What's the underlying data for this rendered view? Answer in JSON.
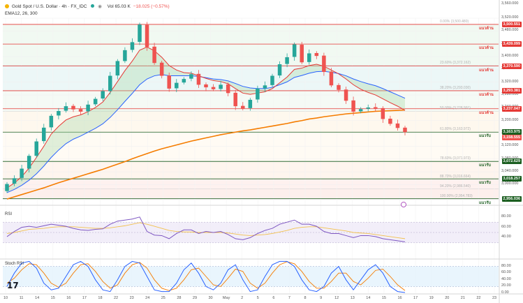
{
  "header": {
    "symbol": "Gold Spot / U.S. Dollar",
    "interval": "4h",
    "source": "FX_IDC",
    "volume": "Vol 65.03 K",
    "change": "−18.025 (−0.57%)",
    "ema_label": "EMA12, 26, 300"
  },
  "colors": {
    "up": "#26a69a",
    "down": "#ef5350",
    "resistance": "#e53935",
    "support": "#1b5e20",
    "ema_fast": "#e53935",
    "ema_mid": "#2962ff",
    "ema_slow": "#f57c00",
    "rsi": "#7e57c2",
    "stoch_k": "#2962ff",
    "stoch_d": "#f57c00"
  },
  "chart_data": {
    "type": "candlestick",
    "title": "Gold Spot / U.S. Dollar · 4h · FX_IDC",
    "y_axis": {
      "min": 2940,
      "max": 3580,
      "ticks": [
        3000,
        3040,
        3080,
        3120,
        3160,
        3200,
        3240,
        3280,
        3320,
        3360,
        3400,
        3440,
        3480,
        3520,
        3560,
        3580
      ]
    },
    "x_axis": {
      "ticks": [
        "10",
        "11",
        "14",
        "15",
        "16",
        "17",
        "18",
        "22",
        "23",
        "24",
        "25",
        "28",
        "29",
        "30",
        "May",
        "2",
        "5",
        "6",
        "7",
        "8",
        "9",
        "12",
        "13",
        "14",
        "15",
        "16",
        "17",
        "19",
        "20",
        "21",
        "22",
        "23"
      ]
    },
    "series_close": [
      3002,
      3020,
      3050,
      3090,
      3135,
      3178,
      3215,
      3230,
      3245,
      3235,
      3228,
      3250,
      3268,
      3292,
      3340,
      3386,
      3420,
      3445,
      3500,
      3430,
      3380,
      3340,
      3300,
      3318,
      3330,
      3345,
      3312,
      3304,
      3298,
      3312,
      3286,
      3245,
      3238,
      3265,
      3300,
      3310,
      3340,
      3376,
      3398,
      3438,
      3382,
      3410,
      3402,
      3352,
      3310,
      3296,
      3262,
      3228,
      3236,
      3241,
      3238,
      3205,
      3190,
      3177,
      3164
    ],
    "series_open": [
      2980,
      3003,
      3021,
      3050,
      3090,
      3136,
      3179,
      3216,
      3231,
      3246,
      3236,
      3229,
      3251,
      3269,
      3292,
      3341,
      3386,
      3421,
      3446,
      3499,
      3431,
      3381,
      3341,
      3301,
      3319,
      3331,
      3346,
      3313,
      3305,
      3299,
      3313,
      3287,
      3246,
      3239,
      3266,
      3301,
      3311,
      3341,
      3377,
      3399,
      3437,
      3383,
      3411,
      3403,
      3353,
      3311,
      3297,
      3263,
      3229,
      3237,
      3242,
      3239,
      3206,
      3191,
      3178
    ],
    "ema_fast": [
      2990,
      3005,
      3025,
      3052,
      3085,
      3120,
      3158,
      3182,
      3202,
      3212,
      3218,
      3228,
      3241,
      3258,
      3288,
      3322,
      3356,
      3386,
      3420,
      3430,
      3418,
      3398,
      3372,
      3358,
      3350,
      3348,
      3340,
      3332,
      3325,
      3322,
      3315,
      3300,
      3286,
      3282,
      3286,
      3290,
      3300,
      3318,
      3336,
      3360,
      3364,
      3372,
      3376,
      3370,
      3358,
      3346,
      3330,
      3312,
      3298,
      3288,
      3280,
      3268,
      3256,
      3245,
      3232
    ],
    "ema_mid": [
      2975,
      2985,
      2998,
      3014,
      3034,
      3058,
      3085,
      3108,
      3128,
      3142,
      3152,
      3164,
      3176,
      3190,
      3210,
      3234,
      3260,
      3285,
      3312,
      3330,
      3340,
      3344,
      3340,
      3340,
      3340,
      3340,
      3338,
      3334,
      3330,
      3328,
      3324,
      3316,
      3307,
      3302,
      3300,
      3300,
      3304,
      3312,
      3321,
      3335,
      3341,
      3348,
      3353,
      3354,
      3351,
      3347,
      3340,
      3330,
      3322,
      3315,
      3309,
      3300,
      3290,
      3280,
      3270
    ],
    "ema_slow": [
      2955,
      2962,
      2969,
      2976,
      2983,
      2990,
      2998,
      3006,
      3013,
      3020,
      3027,
      3034,
      3041,
      3048,
      3056,
      3064,
      3072,
      3081,
      3089,
      3097,
      3105,
      3112,
      3118,
      3124,
      3130,
      3136,
      3141,
      3146,
      3151,
      3156,
      3160,
      3164,
      3168,
      3171,
      3175,
      3179,
      3183,
      3187,
      3191,
      3196,
      3200,
      3205,
      3208,
      3212,
      3215,
      3218,
      3221,
      3223,
      3225,
      3227,
      3229,
      3230,
      3231,
      3232,
      3233
    ],
    "horizontal_levels": [
      {
        "price": 3500.551,
        "label": "3,500.551",
        "kind": "resistance",
        "tag": "แนวต้าน"
      },
      {
        "price": 3439.099,
        "label": "3,439.099",
        "kind": "resistance",
        "tag": "แนวต้าน"
      },
      {
        "price": 3370.59,
        "label": "3,370.590",
        "kind": "resistance",
        "tag": "แนวต้าน"
      },
      {
        "price": 3293.381,
        "label": "3,293.381",
        "kind": "resistance",
        "tag": "แนวต้าน"
      },
      {
        "price": 3237.047,
        "label": "3,237.047",
        "kind": "resistance",
        "tag": "แนวต้าน"
      },
      {
        "price": 3163.975,
        "label": "3,163.975",
        "kind": "support",
        "tag": "แนวรับ"
      },
      {
        "price": 3072.629,
        "label": "3,072.629",
        "kind": "support",
        "tag": "แนวรับ"
      },
      {
        "price": 3018.257,
        "label": "3,018.257",
        "kind": "support",
        "tag": "แนวรับ"
      },
      {
        "price": 2956.036,
        "label": "2,956.036",
        "kind": "support",
        "tag": "แนวรับ"
      }
    ],
    "last_price": {
      "price": 3158.555,
      "label": "3,158.555"
    },
    "fib_levels": [
      {
        "price": 3500.48,
        "label": "0.00% (3,500.480)"
      },
      {
        "price": 3372.16,
        "label": "23.60% (3,372.162)"
      },
      {
        "price": 3293.03,
        "label": "38.20% (3,293.030)"
      },
      {
        "price": 3228.99,
        "label": "50.00% (3,228.991)"
      },
      {
        "price": 3163.97,
        "label": "61.80% (3,163.972)"
      },
      {
        "price": 3071.97,
        "label": "78.60% (3,071.973)"
      },
      {
        "price": 3016.66,
        "label": "88.70% (3,016.664)"
      },
      {
        "price": 2986.54,
        "label": "94.20% (2,986.540)"
      },
      {
        "price": 2954.78,
        "label": "100.00% (2,954.783)"
      }
    ],
    "rsi": {
      "label": "RSI",
      "range": [
        0,
        100
      ],
      "ticks": [
        40,
        60,
        80
      ],
      "overbought": 70,
      "oversold": 30,
      "values": [
        42,
        52,
        60,
        62,
        60,
        63,
        66,
        64,
        62,
        58,
        55,
        54,
        56,
        57,
        66,
        72,
        74,
        76,
        80,
        52,
        45,
        44,
        38,
        48,
        55,
        55,
        48,
        52,
        50,
        52,
        46,
        38,
        36,
        40,
        48,
        54,
        58,
        66,
        70,
        74,
        66,
        66,
        62,
        52,
        48,
        48,
        44,
        40,
        44,
        44,
        42,
        38,
        36,
        34,
        32
      ],
      "signal": [
        48,
        50,
        53,
        56,
        57,
        58,
        60,
        61,
        61,
        61,
        60,
        59,
        58,
        58,
        59,
        61,
        63,
        66,
        69,
        66,
        62,
        58,
        54,
        52,
        51,
        51,
        50,
        50,
        50,
        50,
        49,
        47,
        45,
        44,
        45,
        46,
        48,
        51,
        54,
        58,
        60,
        61,
        61,
        59,
        57,
        55,
        53,
        50,
        49,
        48,
        46,
        44,
        42,
        40,
        38
      ]
    },
    "stoch_rsi": {
      "label": "Stoch RSI",
      "range": [
        0,
        100
      ],
      "ticks": [
        0,
        20,
        40,
        60,
        80
      ],
      "k": [
        20,
        60,
        90,
        95,
        75,
        30,
        10,
        15,
        50,
        85,
        95,
        80,
        40,
        10,
        5,
        40,
        80,
        95,
        90,
        50,
        10,
        5,
        5,
        30,
        70,
        90,
        60,
        20,
        10,
        30,
        70,
        85,
        40,
        5,
        10,
        50,
        85,
        95,
        95,
        80,
        40,
        10,
        5,
        20,
        60,
        80,
        40,
        10,
        40,
        70,
        85,
        60,
        20,
        5,
        2
      ],
      "d": [
        30,
        45,
        70,
        88,
        85,
        60,
        30,
        18,
        30,
        60,
        85,
        88,
        65,
        35,
        15,
        25,
        60,
        85,
        92,
        75,
        40,
        15,
        8,
        15,
        40,
        70,
        75,
        50,
        25,
        20,
        45,
        72,
        65,
        30,
        15,
        30,
        60,
        85,
        94,
        88,
        65,
        35,
        15,
        15,
        35,
        60,
        60,
        35,
        25,
        45,
        68,
        72,
        50,
        25,
        8
      ]
    }
  }
}
